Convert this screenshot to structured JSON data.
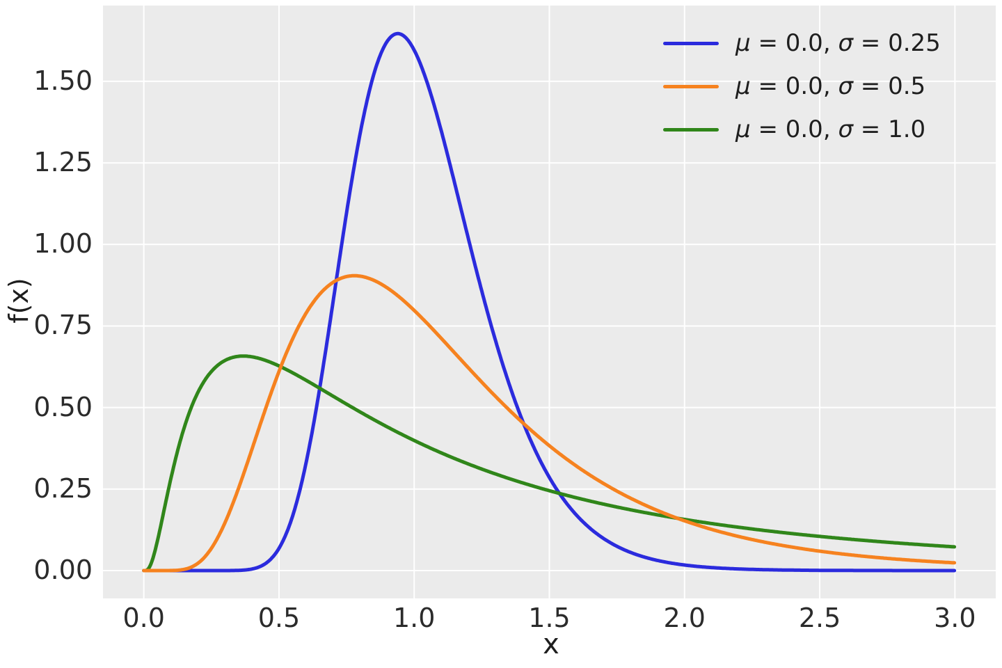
{
  "figure": {
    "background_color": "#ffffff",
    "axes_background_color": "#ebebeb",
    "grid_color": "#ffffff",
    "tick_text_color": "#2b2b2b",
    "label_text_color": "#1e1e1e"
  },
  "chart_data": {
    "type": "line",
    "title": "",
    "xlabel": "x",
    "ylabel": "f(x)",
    "function": "log-normal probability density f(x) = exp(-(ln x - mu)^2 / (2 sigma^2)) / (x sigma sqrt(2 pi))",
    "grid": true,
    "legend_position": "upper right",
    "legend_frame": false,
    "xlim": [
      -0.151,
      3.151
    ],
    "ylim": [
      -0.0853,
      1.7324
    ],
    "x_ticks": [
      0.0,
      0.5,
      1.0,
      1.5,
      2.0,
      2.5,
      3.0
    ],
    "x_tick_labels": [
      "0.0",
      "0.5",
      "1.0",
      "1.5",
      "2.0",
      "2.5",
      "3.0"
    ],
    "y_ticks": [
      0.0,
      0.25,
      0.5,
      0.75,
      1.0,
      1.25,
      1.5
    ],
    "y_tick_labels": [
      "0.00",
      "0.25",
      "0.50",
      "0.75",
      "1.00",
      "1.25",
      "1.50"
    ],
    "sample_x": [
      0.0,
      0.1,
      0.2,
      0.3,
      0.4,
      0.5,
      0.6,
      0.7,
      0.8,
      0.9,
      1.0,
      1.1,
      1.2,
      1.3,
      1.4,
      1.5,
      1.6,
      1.7,
      1.8,
      1.9,
      2.0,
      2.1,
      2.2,
      2.3,
      2.4,
      2.5,
      2.6,
      2.7,
      2.8,
      2.9,
      3.0
    ],
    "series": [
      {
        "label": "μ = 0.0, σ = 0.25",
        "mu": 0.0,
        "sigma": 0.25,
        "color": "#2b2bdd",
        "peak": {
          "x": 0.939,
          "y": 1.646
        },
        "sample_y": [
          0.0,
          0.0,
          0.0,
          0.0,
          0.0048,
          0.0684,
          0.3298,
          0.8237,
          1.3395,
          1.6226,
          1.5958,
          1.349,
          1.0193,
          0.7078,
          0.4608,
          0.2856,
          0.1704,
          0.0987,
          0.0559,
          0.0311,
          0.0171,
          0.0093,
          0.005,
          0.0027,
          0.0014,
          0.0008,
          0.0004,
          0.0002,
          0.0001,
          0.0001,
          0.0
        ]
      },
      {
        "label": "μ = 0.0, σ = 0.5",
        "mu": 0.0,
        "sigma": 0.5,
        "color": "#f6821f",
        "peak": {
          "x": 0.779,
          "y": 0.904
        },
        "sample_y": [
          0.0,
          0.0002,
          0.0224,
          0.1465,
          0.3721,
          0.6105,
          0.7891,
          0.8838,
          0.9028,
          0.8671,
          0.7979,
          0.7123,
          0.6221,
          0.5348,
          0.4545,
          0.3829,
          0.3206,
          0.2672,
          0.2221,
          0.1842,
          0.1526,
          0.1264,
          0.1046,
          0.0866,
          0.0718,
          0.0595,
          0.0494,
          0.0411,
          0.0342,
          0.0285,
          0.0238
        ]
      },
      {
        "label": "μ = 0.0, σ = 1.0",
        "mu": 0.0,
        "sigma": 1.0,
        "color": "#30861a",
        "peak": {
          "x": 0.368,
          "y": 0.658
        },
        "sample_y": [
          0.0,
          0.2815,
          0.5463,
          0.6442,
          0.6554,
          0.6275,
          0.5836,
          0.5348,
          0.4864,
          0.4408,
          0.3989,
          0.361,
          0.327,
          0.2965,
          0.2693,
          0.245,
          0.2233,
          0.2039,
          0.1865,
          0.1709,
          0.1569,
          0.1443,
          0.1329,
          0.1226,
          0.1133,
          0.1049,
          0.0972,
          0.0902,
          0.0839,
          0.0781,
          0.0727
        ]
      }
    ]
  }
}
